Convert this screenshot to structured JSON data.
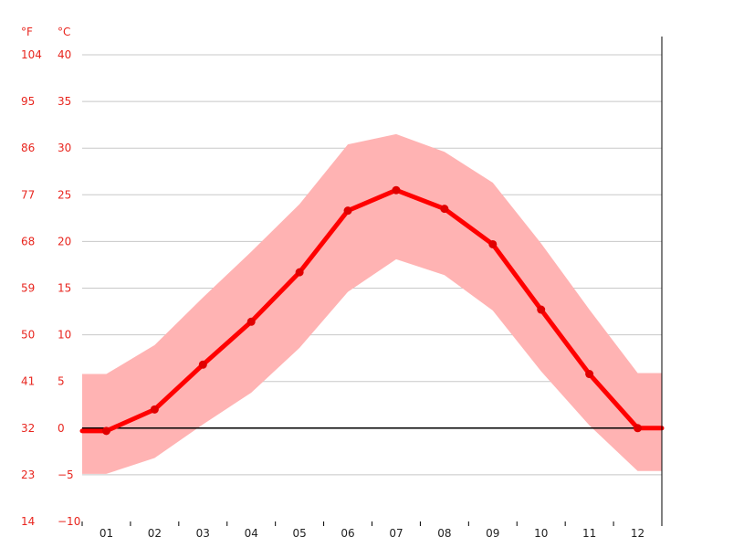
{
  "chart_data": {
    "type": "line",
    "units": {
      "fahrenheit": "°F",
      "celsius": "°C"
    },
    "categories": [
      "01",
      "02",
      "03",
      "04",
      "05",
      "06",
      "07",
      "08",
      "09",
      "10",
      "11",
      "12"
    ],
    "ylim": [
      -10,
      40
    ],
    "yticks_c": [
      "40",
      "35",
      "30",
      "25",
      "20",
      "15",
      "10",
      "5",
      "0",
      "−5",
      "−10"
    ],
    "yticks_c_values": [
      40,
      35,
      30,
      25,
      20,
      15,
      10,
      5,
      0,
      -5,
      -10
    ],
    "yticks_f": [
      "104",
      "95",
      "86",
      "77",
      "68",
      "59",
      "50",
      "41",
      "32",
      "23",
      "14"
    ],
    "series": [
      {
        "values": [
          -0.3,
          2.0,
          6.8,
          11.4,
          16.7,
          23.3,
          25.5,
          23.5,
          19.7,
          12.7,
          5.8,
          0.0
        ]
      },
      {
        "values": [
          5.8,
          8.9,
          14.0,
          18.9,
          24.0,
          30.4,
          31.5,
          29.6,
          26.3,
          19.8,
          12.7,
          5.9
        ]
      },
      {
        "values": [
          -4.9,
          -3.2,
          0.4,
          3.8,
          8.6,
          14.6,
          18.1,
          16.4,
          12.6,
          6.1,
          0.3,
          -4.6
        ]
      }
    ],
    "grid": true,
    "legend": "none"
  }
}
